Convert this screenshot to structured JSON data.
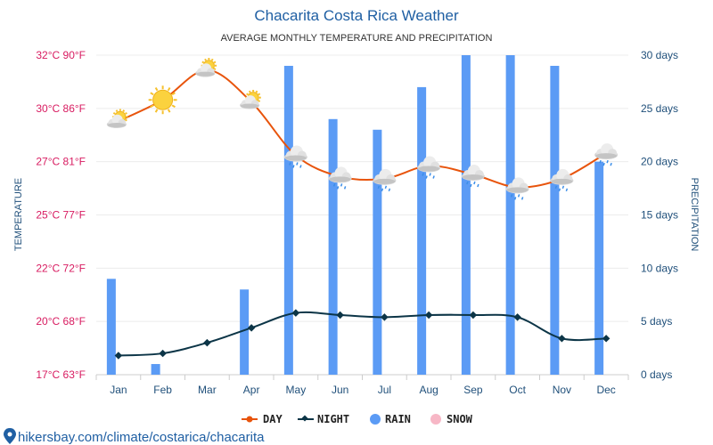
{
  "chart_data": {
    "type": "bar+line",
    "title": "Chacarita Costa Rica Weather",
    "subtitle": "AVERAGE MONTHLY TEMPERATURE AND PRECIPITATION",
    "ylabel_left": "TEMPERATURE",
    "ylabel_right": "PRECIPITATION",
    "categories": [
      "Jan",
      "Feb",
      "Mar",
      "Apr",
      "May",
      "Jun",
      "Jul",
      "Aug",
      "Sep",
      "Oct",
      "Nov",
      "Dec"
    ],
    "left_ticks": [
      {
        "value": 17,
        "label": "17°C 63°F"
      },
      {
        "value": 20,
        "label": "20°C 68°F"
      },
      {
        "value": 22,
        "label": "22°C 72°F"
      },
      {
        "value": 25,
        "label": "25°C 77°F"
      },
      {
        "value": 27,
        "label": "27°C 81°F"
      },
      {
        "value": 30,
        "label": "30°C 86°F"
      },
      {
        "value": 32,
        "label": "32°C 90°F"
      }
    ],
    "right_ticks": [
      {
        "value": 0,
        "label": "0 days"
      },
      {
        "value": 5,
        "label": "5 days"
      },
      {
        "value": 10,
        "label": "10 days"
      },
      {
        "value": 15,
        "label": "15 days"
      },
      {
        "value": 20,
        "label": "20 days"
      },
      {
        "value": 25,
        "label": "25 days"
      },
      {
        "value": 30,
        "label": "30 days"
      }
    ],
    "y_left_range": [
      17,
      32
    ],
    "y_right_range": [
      0,
      30
    ],
    "series": [
      {
        "name": "DAY",
        "type": "line",
        "color": "#e8540c",
        "values": [
          28.9,
          29.9,
          31.3,
          29.8,
          27.3,
          26.3,
          26.2,
          26.8,
          26.4,
          25.8,
          26.2,
          27.4
        ]
      },
      {
        "name": "NIGHT",
        "type": "line",
        "color": "#0c3547",
        "values": [
          17.9,
          18.0,
          18.5,
          19.2,
          19.9,
          19.8,
          19.7,
          19.8,
          19.8,
          19.7,
          18.7,
          18.7
        ]
      },
      {
        "name": "RAIN",
        "type": "bar",
        "color": "#5b9bf5",
        "values": [
          9,
          1,
          0,
          8,
          29,
          24,
          23,
          27,
          30,
          30,
          29,
          20
        ]
      },
      {
        "name": "SNOW",
        "type": "bar",
        "color": "#f7b7c6",
        "values": [
          0,
          0,
          0,
          0,
          0,
          0,
          0,
          0,
          0,
          0,
          0,
          0
        ]
      }
    ],
    "weather_icons": [
      "partly-cloudy-icon",
      "sun-icon",
      "partly-cloudy-icon",
      "partly-cloudy-icon",
      "rain-cloud-icon",
      "rain-cloud-icon",
      "rain-cloud-icon",
      "rain-cloud-icon",
      "rain-cloud-icon",
      "rain-cloud-icon",
      "rain-cloud-icon",
      "rain-cloud-icon"
    ]
  },
  "footer": {
    "link": "hikersbay.com/climate/costarica/chacarita"
  }
}
